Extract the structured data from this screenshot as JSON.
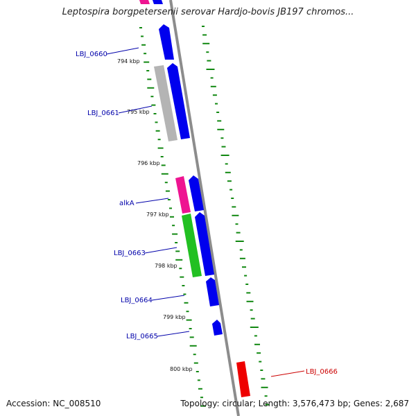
{
  "title": "Leptospira borgpetersenii serovar Hardjo-bovis JB197 chromos...",
  "footer": {
    "accession": "Accession: NC_008510",
    "stats": "Topology: circular; Length: 3,576,473 bp; Genes: 2,687"
  },
  "colors": {
    "backbone": "#8c8c8c",
    "cds": "#0000ee",
    "pseudo": "#b4b4b4",
    "gene_pink": "#ee1491",
    "gene_green": "#22c022",
    "gene_red": "#ee0000",
    "gc_skew": "#118811",
    "label_blue": "#0000aa",
    "label_red": "#cc0000"
  },
  "ticks": [
    "794 kbp",
    "795 kbp",
    "796 kbp",
    "797 kbp",
    "798 kbp",
    "799 kbp",
    "800 kbp"
  ],
  "genes": [
    {
      "name": "LBJ_0660",
      "color": "label_blue"
    },
    {
      "name": "LBJ_0661",
      "color": "label_blue"
    },
    {
      "name": "alkA",
      "color": "label_blue"
    },
    {
      "name": "LBJ_0663",
      "color": "label_blue"
    },
    {
      "name": "LBJ_0664",
      "color": "label_blue"
    },
    {
      "name": "LBJ_0665",
      "color": "label_blue"
    },
    {
      "name": "LBJ_0666",
      "color": "label_red"
    }
  ]
}
